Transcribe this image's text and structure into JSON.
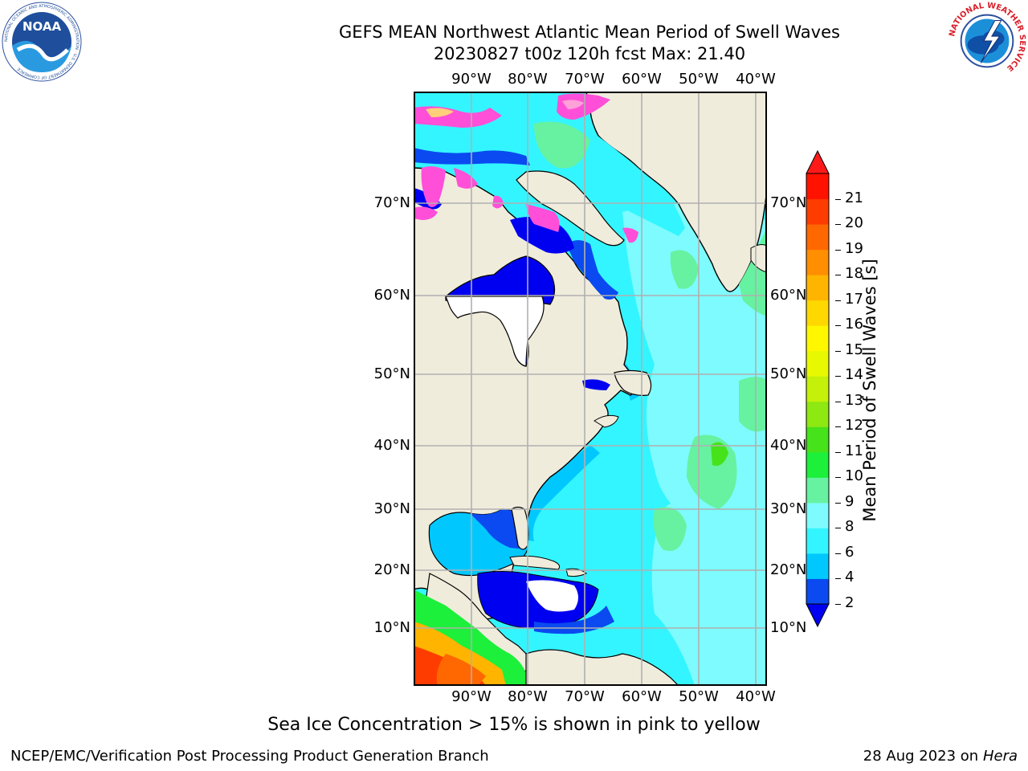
{
  "header": {
    "title_line1": "GEFS MEAN Northwest Atlantic Mean Period of Swell Waves",
    "title_line2": "20230827 t00z 120h fcst   Max: 21.40"
  },
  "logos": {
    "noaa": {
      "text": "NOAA",
      "ring_text": "NATIONAL OCEANIC AND ATMOSPHERIC ADMINISTRATION · U.S. DEPARTMENT OF COMMERCE",
      "color": "#1f4e9c"
    },
    "nws": {
      "ring_text": "NATIONAL WEATHER SERVICE",
      "color": "#d8202a"
    }
  },
  "map": {
    "lon_labels": [
      "90°W",
      "80°W",
      "70°W",
      "60°W",
      "50°W",
      "40°W"
    ],
    "lat_labels": [
      "70°N",
      "60°N",
      "50°N",
      "40°N",
      "30°N",
      "20°N",
      "10°N"
    ]
  },
  "colorbar": {
    "label": "Mean Period of Swell Waves [s]",
    "ticks": [
      "21",
      "20",
      "19",
      "18",
      "17",
      "16",
      "15",
      "14",
      "13",
      "12",
      "11",
      "10",
      "9",
      "8",
      "6",
      "4",
      "2"
    ],
    "colors_low_to_high": [
      "#0a4af0",
      "#00c8ff",
      "#33f5ff",
      "#7dfbff",
      "#66f2a0",
      "#1cf03a",
      "#46e21a",
      "#8ee812",
      "#c4f00a",
      "#e8f800",
      "#fff700",
      "#ffd800",
      "#ffb400",
      "#ff8e00",
      "#ff6800",
      "#ff3c00",
      "#ff1200"
    ],
    "under_color": "#0000f0",
    "over_color": "#ff1a1a"
  },
  "footer": {
    "ice_note": "Sea Ice Concentration > 15% is shown in pink to yellow",
    "branch": "NCEP/EMC/Verification Post Processing Product Generation Branch",
    "date": "28 Aug 2023 on",
    "host": "Hera"
  }
}
